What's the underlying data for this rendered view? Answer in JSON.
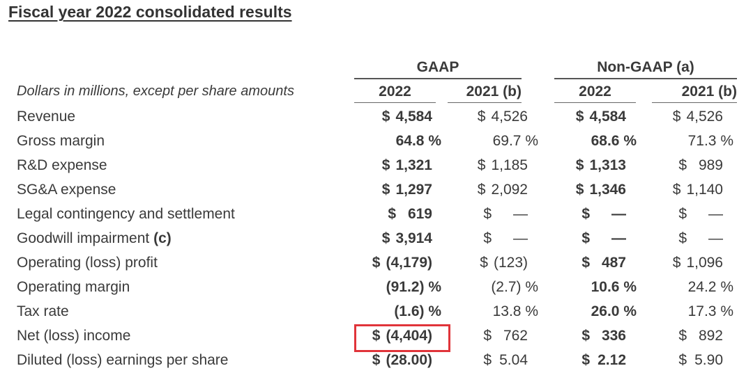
{
  "title": "Fiscal year 2022 consolidated results",
  "groups": {
    "gaap": "GAAP",
    "non_gaap": "Non-GAAP (a)"
  },
  "unit_label": "Dollars in millions, except per share amounts",
  "years": [
    "2022",
    "2021 (b)",
    "2022",
    "2021 (b)"
  ],
  "highlight_color": "#e0343a",
  "rows": [
    {
      "label": "Revenue",
      "type": "usd",
      "cells": [
        [
          "$",
          "4,584"
        ],
        [
          "$",
          "4,526"
        ],
        [
          "$",
          "4,584"
        ],
        [
          "$",
          "4,526"
        ]
      ]
    },
    {
      "label": "Gross margin",
      "type": "pct",
      "cells": [
        [
          "",
          "64.8 %"
        ],
        [
          "",
          "69.7 %"
        ],
        [
          "",
          "68.6 %"
        ],
        [
          "",
          "71.3 %"
        ]
      ]
    },
    {
      "label": "R&D expense",
      "type": "usd",
      "cells": [
        [
          "$",
          "1,321"
        ],
        [
          "$",
          "1,185"
        ],
        [
          "$",
          "1,313"
        ],
        [
          "$",
          "989"
        ]
      ]
    },
    {
      "label": "SG&A expense",
      "type": "usd",
      "cells": [
        [
          "$",
          "1,297"
        ],
        [
          "$",
          "2,092"
        ],
        [
          "$",
          "1,346"
        ],
        [
          "$",
          "1,140"
        ]
      ]
    },
    {
      "label": "Legal contingency and settlement",
      "type": "usd",
      "cells": [
        [
          "$",
          "619"
        ],
        [
          "$",
          "—"
        ],
        [
          "$",
          "—"
        ],
        [
          "$",
          "—"
        ]
      ]
    },
    {
      "label": "Goodwill impairment ",
      "label_bold": "(c)",
      "type": "usd",
      "cells": [
        [
          "$",
          "3,914"
        ],
        [
          "$",
          "—"
        ],
        [
          "$",
          "—"
        ],
        [
          "$",
          "—"
        ]
      ]
    },
    {
      "label": "Operating (loss) profit",
      "type": "usd",
      "cells": [
        [
          "$",
          "(4,179)"
        ],
        [
          "$",
          "(123)"
        ],
        [
          "$",
          "487"
        ],
        [
          "$",
          "1,096"
        ]
      ]
    },
    {
      "label": "Operating margin",
      "type": "pct",
      "cells": [
        [
          "",
          "(91.2) %"
        ],
        [
          "",
          "(2.7) %"
        ],
        [
          "",
          "10.6 %"
        ],
        [
          "",
          "24.2 %"
        ]
      ]
    },
    {
      "label": "Tax rate",
      "type": "pct",
      "cells": [
        [
          "",
          "(1.6) %"
        ],
        [
          "",
          "13.8 %"
        ],
        [
          "",
          "26.0 %"
        ],
        [
          "",
          "17.3 %"
        ]
      ]
    },
    {
      "label": "Net (loss) income",
      "type": "usd",
      "cells": [
        [
          "$",
          "(4,404)"
        ],
        [
          "$",
          "762"
        ],
        [
          "$",
          "336"
        ],
        [
          "$",
          "892"
        ]
      ]
    },
    {
      "label": "Diluted (loss) earnings per share",
      "type": "usd",
      "cells": [
        [
          "$",
          "(28.00)"
        ],
        [
          "$",
          "5.04"
        ],
        [
          "$",
          "2.12"
        ],
        [
          "$",
          "5.90"
        ]
      ]
    }
  ]
}
